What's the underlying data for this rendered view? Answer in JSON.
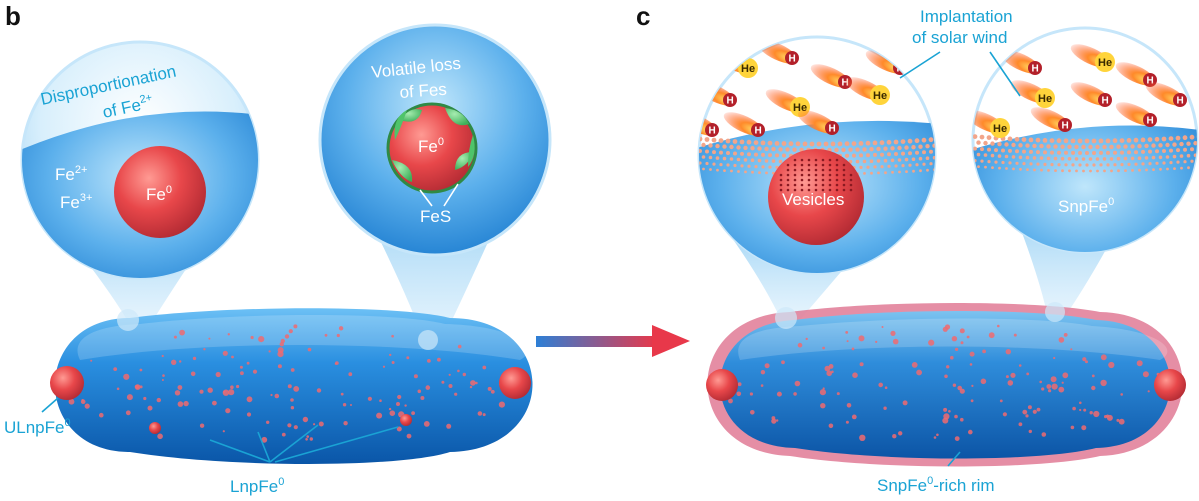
{
  "panels": {
    "b": "b",
    "c": "c"
  },
  "panel_b": {
    "bubble1_title_line1": "Disproportionation",
    "bubble1_title_line2": "of Fe",
    "bubble1_title_sup": "2+",
    "fe2": "Fe",
    "fe2_sup": "2+",
    "fe3": "Fe",
    "fe3_sup": "3+",
    "fe0_core": "Fe",
    "fe0_core_sup": "0",
    "bubble2_title_line1": "Volatile loss",
    "bubble2_title_line2": "of Fes",
    "fe0_core2": "Fe",
    "fe0_core2_sup": "0",
    "fes": "FeS",
    "ulnp_label": "ULnpFe",
    "ulnp_sup": "0",
    "lnp_label": "LnpFe",
    "lnp_sup": "0"
  },
  "panel_c": {
    "implant_line1": "Implantation",
    "implant_line2": "of solar wind",
    "he": "He",
    "h": "H",
    "vesicles": "Vesicles",
    "snp_label": "SnpFe",
    "snp_sup": "0",
    "rim_label_pre": "SnpFe",
    "rim_label_sup": "0",
    "rim_label_post": "-rich rim"
  },
  "colors": {
    "grain_blue": "#1f86d6",
    "grain_dark": "#0b5fb3",
    "iron_red": "#e8474a",
    "fes_green": "#4ec46a",
    "label_cyan": "#1aa3d4",
    "rim_pink": "#e06a86"
  }
}
